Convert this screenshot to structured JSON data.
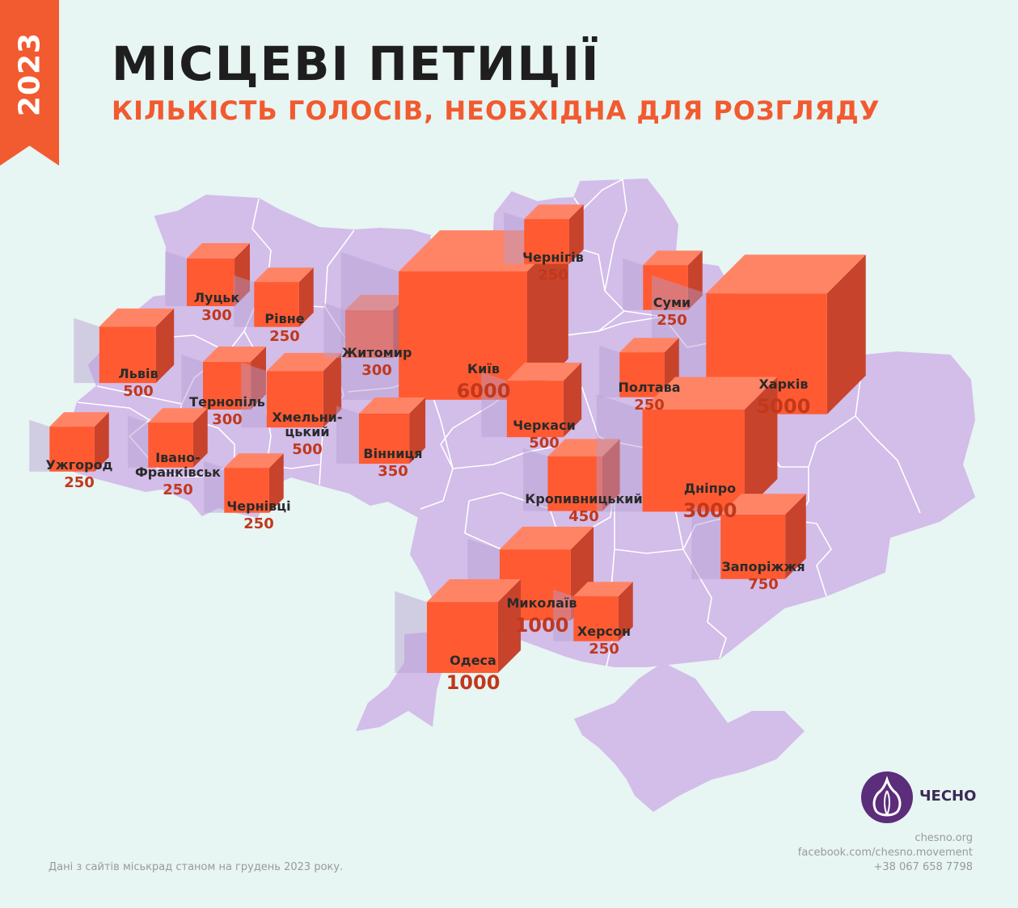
{
  "year": "2023",
  "title": "МІСЦЕВІ ПЕТИЦІЇ",
  "subtitle": "КІЛЬКІСТЬ ГОЛОСІВ, НЕОБХІДНА ДЛЯ РОЗГЛЯДУ",
  "colors": {
    "accent": "#f25a2f",
    "map_fill": "#d3bde9",
    "background": "#e7f5f3",
    "value_text": "#c1381c",
    "logo": "#5c2d7a"
  },
  "cities": [
    {
      "name": "Луцьк",
      "value": "300"
    },
    {
      "name": "Рівне",
      "value": "250"
    },
    {
      "name": "Львів",
      "value": "500"
    },
    {
      "name": "Тернопіль",
      "value": "300"
    },
    {
      "name": "Хмельни-\nцький",
      "value": "500"
    },
    {
      "name": "Житомир",
      "value": "300"
    },
    {
      "name": "Київ",
      "value": "6000"
    },
    {
      "name": "Чернігів",
      "value": "250"
    },
    {
      "name": "Суми",
      "value": "250"
    },
    {
      "name": "Харків",
      "value": "5000"
    },
    {
      "name": "Полтава",
      "value": "250"
    },
    {
      "name": "Черкаси",
      "value": "500"
    },
    {
      "name": "Вінниця",
      "value": "350"
    },
    {
      "name": "Ужгород",
      "value": "250"
    },
    {
      "name": "Івано-\nФранківськ",
      "value": "250"
    },
    {
      "name": "Чернівці",
      "value": "250"
    },
    {
      "name": "Кропивницький",
      "value": "450"
    },
    {
      "name": "Дніпро",
      "value": "3000"
    },
    {
      "name": "Запоріжжя",
      "value": "750"
    },
    {
      "name": "Миколаїв",
      "value": "1000"
    },
    {
      "name": "Херсон",
      "value": "250"
    },
    {
      "name": "Одеса",
      "value": "1000"
    }
  ],
  "logo": {
    "text": "ЧЕСНО",
    "icon": "garlic-icon"
  },
  "contacts": [
    "chesno.org",
    "facebook.com/chesno.movement",
    "+38 067 658 7798"
  ],
  "footnote": "Дані з сайтів міськрад станом на грудень 2023 року."
}
